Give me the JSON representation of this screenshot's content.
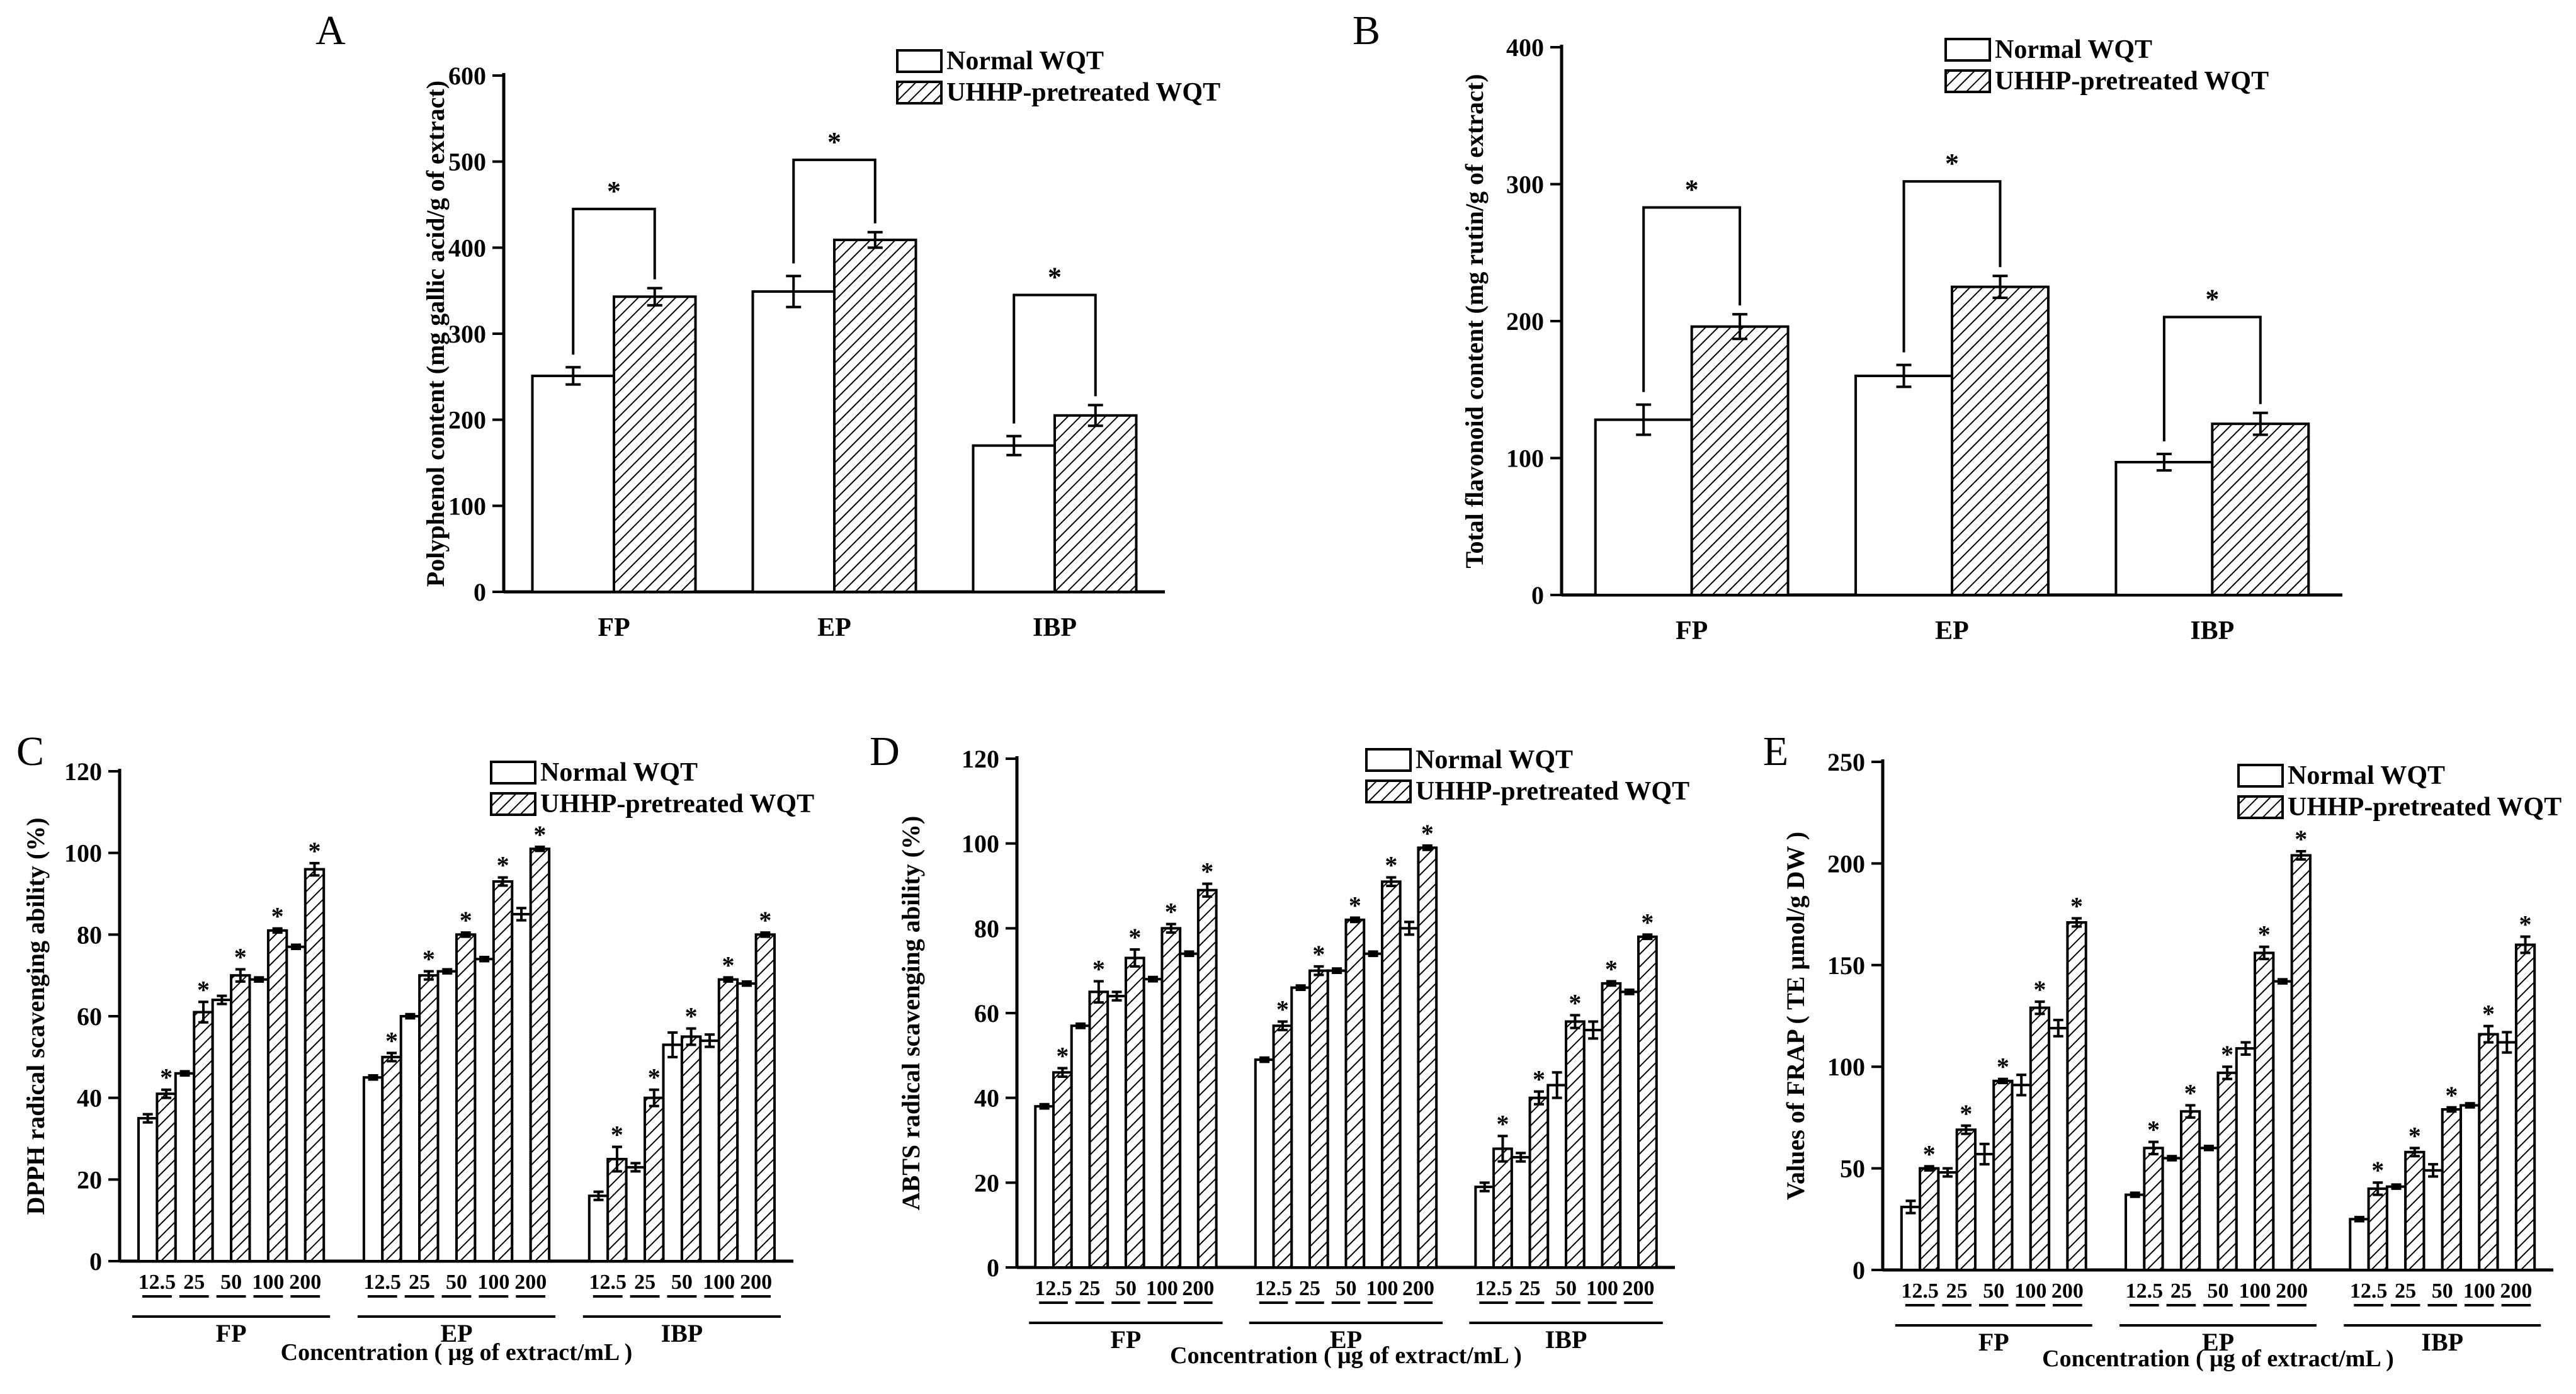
{
  "legend": {
    "normal": "Normal WQT",
    "uhhp": "UHHP-pretreated WQT"
  },
  "colors": {
    "normal_fill": "#ffffff",
    "uhhp_hatch": "#000000",
    "axis": "#000000"
  },
  "chart_data": [
    {
      "id": "A",
      "panel_label": "A",
      "type": "bar",
      "ylabel": "Polyphenol content (mg gallic acid/g of extract)",
      "xlabel": "",
      "ylim": [
        0,
        600
      ],
      "yticks": [
        0,
        100,
        200,
        300,
        400,
        500,
        600
      ],
      "categories": [
        "FP",
        "EP",
        "IBP"
      ],
      "series": [
        {
          "name": "Normal WQT",
          "values": [
            251,
            349,
            170
          ],
          "errors": [
            10,
            18,
            11
          ]
        },
        {
          "name": "UHHP-pretreated WQT",
          "values": [
            343,
            409,
            205
          ],
          "errors": [
            10,
            9,
            12
          ]
        }
      ],
      "significance": [
        "*",
        "*",
        "*"
      ],
      "bracket_levels": [
        445,
        502,
        345
      ]
    },
    {
      "id": "B",
      "panel_label": "B",
      "type": "bar",
      "ylabel": "Total flavonoid content (mg rutin/g of extract)",
      "xlabel": "",
      "ylim": [
        0,
        400
      ],
      "yticks": [
        0,
        100,
        200,
        300,
        400
      ],
      "categories": [
        "FP",
        "EP",
        "IBP"
      ],
      "series": [
        {
          "name": "Normal WQT",
          "values": [
            128,
            160,
            97
          ],
          "errors": [
            11,
            8,
            6
          ]
        },
        {
          "name": "UHHP-pretreated WQT",
          "values": [
            196,
            225,
            125
          ],
          "errors": [
            9,
            8,
            8
          ]
        }
      ],
      "significance": [
        "*",
        "*",
        "*"
      ],
      "bracket_levels": [
        283,
        302,
        203
      ]
    },
    {
      "id": "C",
      "panel_label": "C",
      "type": "bar",
      "ylabel": "DPPH  radical scavenging ability (%)",
      "xlabel": "Concentration ( μg of extract/mL )",
      "ylim": [
        0,
        120
      ],
      "yticks": [
        0,
        20,
        40,
        60,
        80,
        100,
        120
      ],
      "groups": [
        "FP",
        "EP",
        "IBP"
      ],
      "concentrations": [
        "12.5",
        "25",
        "50",
        "100",
        "200"
      ],
      "series": [
        {
          "name": "Normal WQT",
          "values": [
            [
              35,
              46,
              64,
              69,
              77
            ],
            [
              45,
              60,
              71,
              74,
              85
            ],
            [
              16,
              23,
              53,
              54,
              68
            ]
          ],
          "errors": [
            [
              1,
              0.5,
              1,
              0.5,
              0.5
            ],
            [
              0.5,
              0.5,
              0.5,
              0.5,
              1.5
            ],
            [
              1,
              1,
              3,
              1.5,
              0.5
            ]
          ]
        },
        {
          "name": "UHHP-pretreated WQT",
          "values": [
            [
              41,
              61,
              70,
              81,
              96
            ],
            [
              50,
              70,
              80,
              93,
              101
            ],
            [
              25,
              40,
              55,
              69,
              80
            ]
          ],
          "errors": [
            [
              1,
              2.5,
              1.5,
              0.5,
              1.5
            ],
            [
              1,
              1,
              0.5,
              1,
              0.5
            ],
            [
              3,
              2,
              2,
              0.5,
              0.5
            ]
          ]
        }
      ],
      "significance_label": "*"
    },
    {
      "id": "D",
      "panel_label": "D",
      "type": "bar",
      "ylabel": "ABTS  radical scavenging ability (%)",
      "xlabel": "Concentration ( μg of extract/mL )",
      "ylim": [
        0,
        120
      ],
      "yticks": [
        0,
        20,
        40,
        60,
        80,
        100,
        120
      ],
      "groups": [
        "FP",
        "EP",
        "IBP"
      ],
      "concentrations": [
        "12.5",
        "25",
        "50",
        "100",
        "200"
      ],
      "series": [
        {
          "name": "Normal WQT",
          "values": [
            [
              38,
              57,
              64,
              68,
              74
            ],
            [
              49,
              66,
              70,
              74,
              80
            ],
            [
              19,
              26,
              43,
              56,
              65
            ]
          ],
          "errors": [
            [
              0.5,
              0.5,
              1,
              0.5,
              0.5
            ],
            [
              0.5,
              0.5,
              0.5,
              0.5,
              1.5
            ],
            [
              1,
              1,
              3,
              2,
              0.5
            ]
          ]
        },
        {
          "name": "UHHP-pretreated WQT",
          "values": [
            [
              46,
              65,
              73,
              80,
              89
            ],
            [
              57,
              70,
              82,
              91,
              99
            ],
            [
              28,
              40,
              58,
              67,
              78
            ]
          ],
          "errors": [
            [
              1,
              2.5,
              2,
              1,
              1.5
            ],
            [
              1,
              1,
              0.5,
              1,
              0.5
            ],
            [
              3,
              1.5,
              1.5,
              0.5,
              0.5
            ]
          ]
        }
      ],
      "significance_label": "*"
    },
    {
      "id": "E",
      "panel_label": "E",
      "type": "bar",
      "ylabel": "Values of FRAP ( TE μmol/g DW )",
      "xlabel": "Concentration ( μg of extract/mL )",
      "ylim": [
        0,
        250
      ],
      "yticks": [
        0,
        50,
        100,
        150,
        200,
        250
      ],
      "groups": [
        "FP",
        "EP",
        "IBP"
      ],
      "concentrations": [
        "12.5",
        "25",
        "50",
        "100",
        "200"
      ],
      "series": [
        {
          "name": "Normal WQT",
          "values": [
            [
              31,
              48,
              57,
              91,
              119
            ],
            [
              37,
              55,
              60,
              109,
              142
            ],
            [
              25,
              41,
              49,
              81,
              112
            ]
          ],
          "errors": [
            [
              3,
              2,
              5,
              5,
              4
            ],
            [
              1,
              1,
              1,
              3,
              1
            ],
            [
              1,
              1,
              3,
              1,
              5
            ]
          ]
        },
        {
          "name": "UHHP-pretreated WQT",
          "values": [
            [
              50,
              69,
              93,
              129,
              171
            ],
            [
              60,
              78,
              97,
              156,
              204
            ],
            [
              40,
              58,
              79,
              116,
              160
            ]
          ],
          "errors": [
            [
              1,
              2,
              1,
              3,
              2
            ],
            [
              3,
              3,
              3,
              3,
              2
            ],
            [
              3,
              2,
              1,
              4,
              4
            ]
          ]
        }
      ],
      "significance_label": "*"
    }
  ]
}
